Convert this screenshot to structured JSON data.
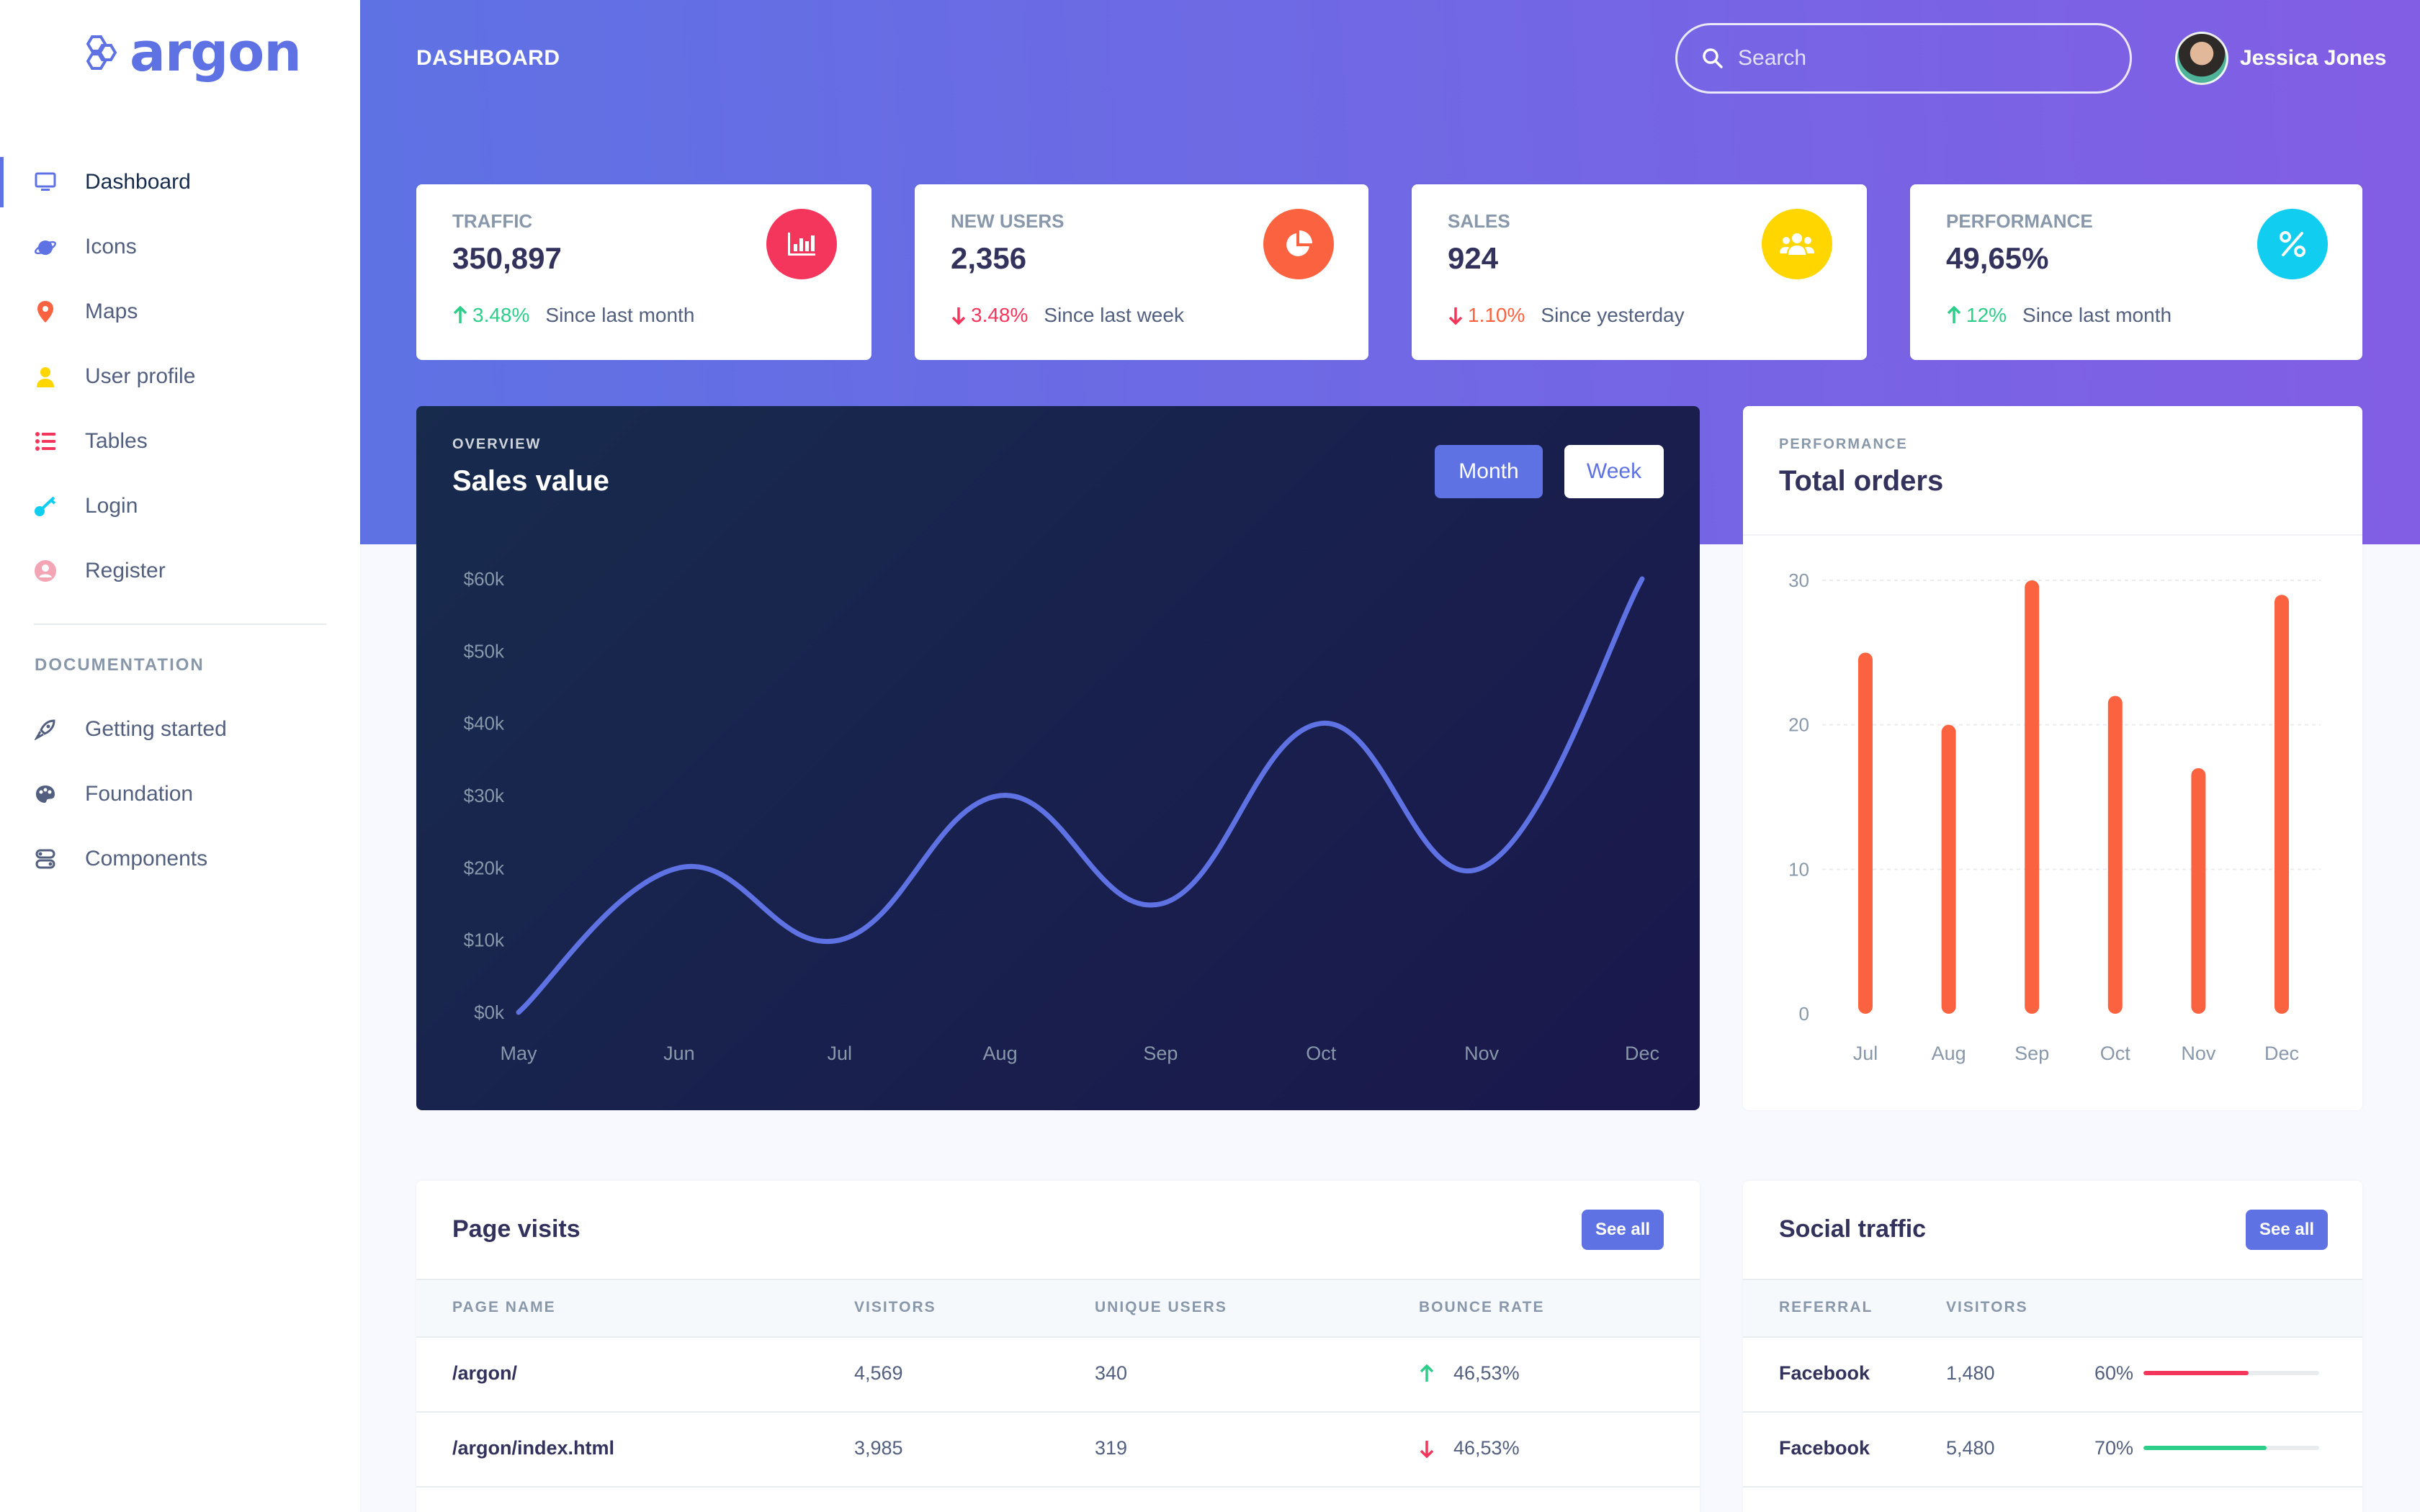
{
  "brand": {
    "name": "argon"
  },
  "sidebar": {
    "items": [
      {
        "label": "Dashboard",
        "icon": "monitor-icon",
        "color": "#5e72e4"
      },
      {
        "label": "Icons",
        "icon": "planet-icon",
        "color": "#5e72e4"
      },
      {
        "label": "Maps",
        "icon": "pin-icon",
        "color": "#fb6340"
      },
      {
        "label": "User profile",
        "icon": "user-icon",
        "color": "#ffd600"
      },
      {
        "label": "Tables",
        "icon": "bullet-list-icon",
        "color": "#f5365c"
      },
      {
        "label": "Login",
        "icon": "key-icon",
        "color": "#11cdef"
      },
      {
        "label": "Register",
        "icon": "user-circle-icon",
        "color": "#f3a4b5"
      }
    ],
    "doc_heading": "DOCUMENTATION",
    "doc_items": [
      {
        "label": "Getting started",
        "icon": "rocket-icon"
      },
      {
        "label": "Foundation",
        "icon": "palette-icon"
      },
      {
        "label": "Components",
        "icon": "components-icon"
      }
    ]
  },
  "header": {
    "title": "DASHBOARD",
    "search_placeholder": "Search",
    "user_name": "Jessica Jones"
  },
  "stats": [
    {
      "title": "Traffic",
      "value": "350,897",
      "change": "3.48%",
      "direction": "up",
      "since": "Since last month",
      "icon": "bar-chart-icon",
      "color": "#f5365c"
    },
    {
      "title": "New users",
      "value": "2,356",
      "change": "3.48%",
      "direction": "down",
      "since": "Since last week",
      "icon": "pie-chart-icon",
      "color": "#fb6340"
    },
    {
      "title": "Sales",
      "value": "924",
      "change": "1.10%",
      "direction": "down",
      "since": "Since yesterday",
      "icon": "users-icon",
      "color": "#ffd600"
    },
    {
      "title": "Performance",
      "value": "49,65%",
      "change": "12%",
      "direction": "up",
      "since": "Since last month",
      "icon": "percent-icon",
      "color": "#11cdef"
    }
  ],
  "sales_card": {
    "overline": "OVERVIEW",
    "heading": "Sales value",
    "month_label": "Month",
    "week_label": "Week"
  },
  "orders_card": {
    "overline": "PERFORMANCE",
    "heading": "Total orders"
  },
  "chart_data": [
    {
      "type": "line",
      "categories": [
        "May",
        "Jun",
        "Jul",
        "Aug",
        "Sep",
        "Oct",
        "Nov",
        "Dec"
      ],
      "values": [
        0,
        20,
        10,
        30,
        15,
        40,
        20,
        60
      ],
      "ytick_labels": [
        "$0k",
        "$10k",
        "$20k",
        "$30k",
        "$40k",
        "$50k",
        "$60k"
      ],
      "ylim": [
        0,
        60
      ],
      "color": "#5e72e4"
    },
    {
      "type": "bar",
      "categories": [
        "Jul",
        "Aug",
        "Sep",
        "Oct",
        "Nov",
        "Dec"
      ],
      "values": [
        25,
        20,
        30,
        22,
        17,
        29
      ],
      "ytick_labels": [
        "0",
        "10",
        "20",
        "30"
      ],
      "ylim": [
        0,
        30
      ],
      "color": "#fb6340"
    }
  ],
  "page_visits": {
    "title": "Page visits",
    "button": "See all",
    "headers": [
      "Page name",
      "Visitors",
      "Unique users",
      "Bounce rate"
    ],
    "rows": [
      {
        "page": "/argon/",
        "visitors": "4,569",
        "unique": "340",
        "bounce": "46,53%",
        "trend": "up"
      },
      {
        "page": "/argon/index.html",
        "visitors": "3,985",
        "unique": "319",
        "bounce": "46,53%",
        "trend": "down"
      }
    ]
  },
  "social_traffic": {
    "title": "Social traffic",
    "button": "See all",
    "headers": [
      "Referral",
      "Visitors"
    ],
    "rows": [
      {
        "referral": "Facebook",
        "visitors": "1,480",
        "percent_label": "60%",
        "percent": 60,
        "color": "#f5365c"
      },
      {
        "referral": "Facebook",
        "visitors": "5,480",
        "percent_label": "70%",
        "percent": 70,
        "color": "#2dce89"
      }
    ]
  }
}
